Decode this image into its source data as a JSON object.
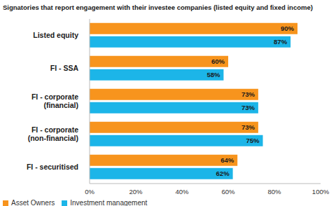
{
  "chart_data": {
    "type": "bar",
    "title": "Signatories that report engagement with their investee companies (listed equity and fixed income)",
    "orientation": "horizontal",
    "categories": [
      "Listed equity",
      "FI - SSA",
      "FI - corporate (financial)",
      "FI - corporate (non-financial)",
      "FI - securitised"
    ],
    "series": [
      {
        "name": "Asset Owners",
        "color": "#f7941d",
        "values": [
          90,
          60,
          73,
          73,
          64
        ],
        "value_labels": [
          "90%",
          "60%",
          "73%",
          "73%",
          "64%"
        ]
      },
      {
        "name": "Investment management",
        "color": "#1cb5e8",
        "values": [
          87,
          58,
          73,
          75,
          62
        ],
        "value_labels": [
          "87%",
          "58%",
          "73%",
          "75%",
          "62%"
        ]
      }
    ],
    "xlim": [
      0,
      100
    ],
    "xticks": [
      {
        "value": 0,
        "label": "0%"
      },
      {
        "value": 20,
        "label": "20%"
      },
      {
        "value": 40,
        "label": "40%"
      },
      {
        "value": 60,
        "label": "60%"
      },
      {
        "value": 80,
        "label": "80%"
      },
      {
        "value": 100,
        "label": "100%"
      }
    ],
    "data_labels": true,
    "legend": "lower left",
    "grid": false
  }
}
